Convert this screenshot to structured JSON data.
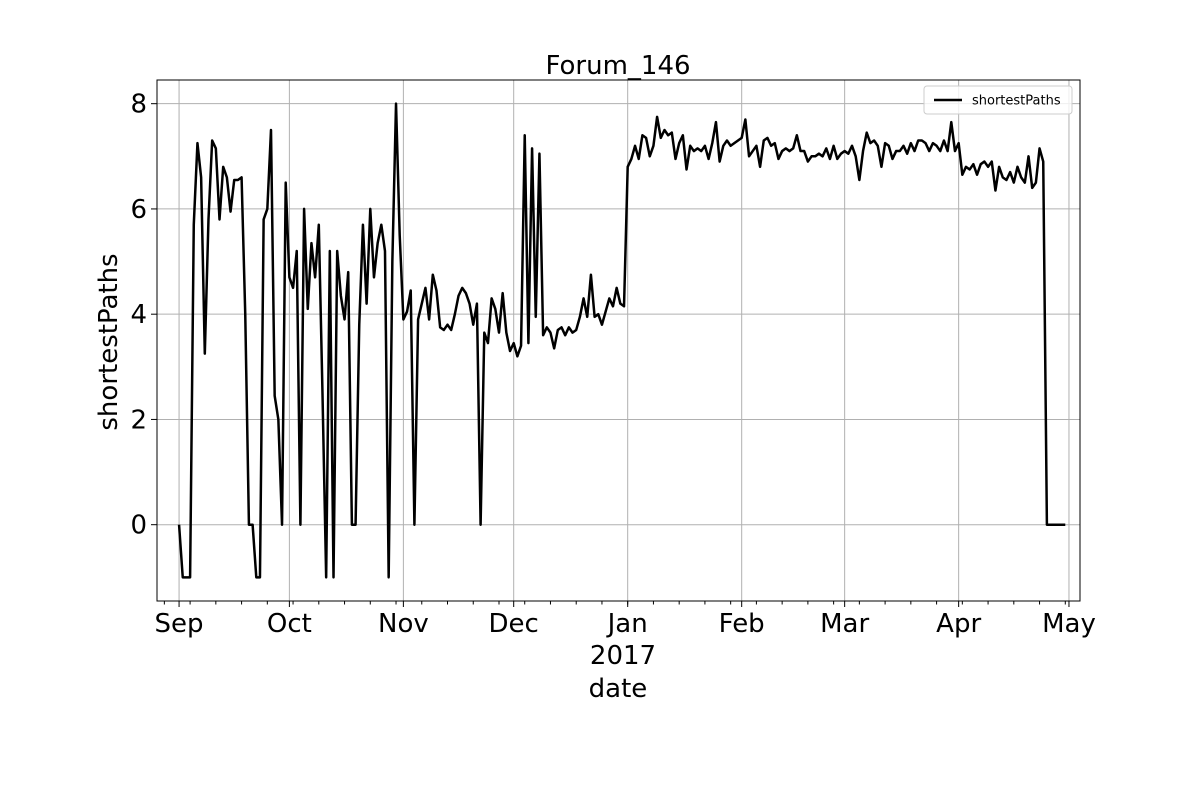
{
  "chart_data": {
    "type": "line",
    "title": "Forum_146",
    "xlabel": "date",
    "ylabel": "shortestPaths",
    "xlim": [
      "2016-08-26",
      "2017-05-04"
    ],
    "ylim": [
      -1.45,
      8.45
    ],
    "y_ticks": [
      0,
      2,
      4,
      6,
      8
    ],
    "x_ticks": [
      {
        "date": "2016-09-01",
        "label": "Sep"
      },
      {
        "date": "2016-10-01",
        "label": "Oct"
      },
      {
        "date": "2016-11-01",
        "label": "Nov"
      },
      {
        "date": "2016-12-01",
        "label": "Dec"
      },
      {
        "date": "2017-01-01",
        "label": "Jan"
      },
      {
        "date": "2017-02-01",
        "label": "Feb"
      },
      {
        "date": "2017-03-01",
        "label": "Mar"
      },
      {
        "date": "2017-04-01",
        "label": "Apr"
      },
      {
        "date": "2017-05-01",
        "label": "May"
      }
    ],
    "year_label": "2017",
    "grid": true,
    "legend": "top-right",
    "line_color": "#000000",
    "series": [
      {
        "name": "shortestPaths",
        "points": [
          [
            "2016-09-01",
            0
          ],
          [
            "2016-09-02",
            -1
          ],
          [
            "2016-09-03",
            -1
          ],
          [
            "2016-09-04",
            -1
          ],
          [
            "2016-09-05",
            5.7
          ],
          [
            "2016-09-06",
            7.25
          ],
          [
            "2016-09-07",
            6.6
          ],
          [
            "2016-09-08",
            3.25
          ],
          [
            "2016-09-09",
            5.8
          ],
          [
            "2016-09-10",
            7.3
          ],
          [
            "2016-09-11",
            7.15
          ],
          [
            "2016-09-12",
            5.8
          ],
          [
            "2016-09-13",
            6.8
          ],
          [
            "2016-09-14",
            6.6
          ],
          [
            "2016-09-15",
            5.95
          ],
          [
            "2016-09-16",
            6.55
          ],
          [
            "2016-09-17",
            6.55
          ],
          [
            "2016-09-18",
            6.6
          ],
          [
            "2016-09-19",
            4.0
          ],
          [
            "2016-09-20",
            0
          ],
          [
            "2016-09-21",
            0
          ],
          [
            "2016-09-22",
            -1
          ],
          [
            "2016-09-23",
            -1
          ],
          [
            "2016-09-24",
            5.8
          ],
          [
            "2016-09-25",
            6.0
          ],
          [
            "2016-09-26",
            7.5
          ],
          [
            "2016-09-27",
            2.45
          ],
          [
            "2016-09-28",
            2.0
          ],
          [
            "2016-09-29",
            0
          ],
          [
            "2016-09-30",
            6.5
          ],
          [
            "2016-10-01",
            4.7
          ],
          [
            "2016-10-02",
            4.5
          ],
          [
            "2016-10-03",
            5.2
          ],
          [
            "2016-10-04",
            0
          ],
          [
            "2016-10-05",
            6.0
          ],
          [
            "2016-10-06",
            4.1
          ],
          [
            "2016-10-07",
            5.35
          ],
          [
            "2016-10-08",
            4.7
          ],
          [
            "2016-10-09",
            5.7
          ],
          [
            "2016-10-10",
            2.5
          ],
          [
            "2016-10-11",
            -1
          ],
          [
            "2016-10-12",
            5.2
          ],
          [
            "2016-10-13",
            -1
          ],
          [
            "2016-10-14",
            5.2
          ],
          [
            "2016-10-15",
            4.35
          ],
          [
            "2016-10-16",
            3.9
          ],
          [
            "2016-10-17",
            4.8
          ],
          [
            "2016-10-18",
            0
          ],
          [
            "2016-10-19",
            0
          ],
          [
            "2016-10-20",
            3.8
          ],
          [
            "2016-10-21",
            5.7
          ],
          [
            "2016-10-22",
            4.2
          ],
          [
            "2016-10-23",
            6.0
          ],
          [
            "2016-10-24",
            4.7
          ],
          [
            "2016-10-25",
            5.35
          ],
          [
            "2016-10-26",
            5.7
          ],
          [
            "2016-10-27",
            5.2
          ],
          [
            "2016-10-28",
            -1
          ],
          [
            "2016-10-29",
            5.0
          ],
          [
            "2016-10-30",
            8.0
          ],
          [
            "2016-10-31",
            5.5
          ],
          [
            "2016-11-01",
            3.9
          ],
          [
            "2016-11-02",
            4.05
          ],
          [
            "2016-11-03",
            4.45
          ],
          [
            "2016-11-04",
            0
          ],
          [
            "2016-11-05",
            3.9
          ],
          [
            "2016-11-06",
            4.2
          ],
          [
            "2016-11-07",
            4.5
          ],
          [
            "2016-11-08",
            3.9
          ],
          [
            "2016-11-09",
            4.75
          ],
          [
            "2016-11-10",
            4.45
          ],
          [
            "2016-11-11",
            3.75
          ],
          [
            "2016-11-12",
            3.7
          ],
          [
            "2016-11-13",
            3.8
          ],
          [
            "2016-11-14",
            3.7
          ],
          [
            "2016-11-15",
            4.0
          ],
          [
            "2016-11-16",
            4.35
          ],
          [
            "2016-11-17",
            4.5
          ],
          [
            "2016-11-18",
            4.4
          ],
          [
            "2016-11-19",
            4.2
          ],
          [
            "2016-11-20",
            3.8
          ],
          [
            "2016-11-21",
            4.2
          ],
          [
            "2016-11-22",
            0
          ],
          [
            "2016-11-23",
            3.65
          ],
          [
            "2016-11-24",
            3.45
          ],
          [
            "2016-11-25",
            4.3
          ],
          [
            "2016-11-26",
            4.1
          ],
          [
            "2016-11-27",
            3.65
          ],
          [
            "2016-11-28",
            4.4
          ],
          [
            "2016-11-29",
            3.65
          ],
          [
            "2016-11-30",
            3.3
          ],
          [
            "2016-12-01",
            3.45
          ],
          [
            "2016-12-02",
            3.2
          ],
          [
            "2016-12-03",
            3.4
          ],
          [
            "2016-12-04",
            7.4
          ],
          [
            "2016-12-05",
            3.45
          ],
          [
            "2016-12-06",
            7.15
          ],
          [
            "2016-12-07",
            3.95
          ],
          [
            "2016-12-08",
            7.05
          ],
          [
            "2016-12-09",
            3.6
          ],
          [
            "2016-12-10",
            3.75
          ],
          [
            "2016-12-11",
            3.65
          ],
          [
            "2016-12-12",
            3.35
          ],
          [
            "2016-12-13",
            3.7
          ],
          [
            "2016-12-14",
            3.75
          ],
          [
            "2016-12-15",
            3.6
          ],
          [
            "2016-12-16",
            3.75
          ],
          [
            "2016-12-17",
            3.65
          ],
          [
            "2016-12-18",
            3.7
          ],
          [
            "2016-12-19",
            3.95
          ],
          [
            "2016-12-20",
            4.3
          ],
          [
            "2016-12-21",
            3.95
          ],
          [
            "2016-12-22",
            4.75
          ],
          [
            "2016-12-23",
            3.95
          ],
          [
            "2016-12-24",
            4.0
          ],
          [
            "2016-12-25",
            3.8
          ],
          [
            "2016-12-26",
            4.05
          ],
          [
            "2016-12-27",
            4.3
          ],
          [
            "2016-12-28",
            4.15
          ],
          [
            "2016-12-29",
            4.5
          ],
          [
            "2016-12-30",
            4.2
          ],
          [
            "2016-12-31",
            4.15
          ],
          [
            "2017-01-01",
            6.8
          ],
          [
            "2017-01-02",
            6.95
          ],
          [
            "2017-01-03",
            7.2
          ],
          [
            "2017-01-04",
            6.95
          ],
          [
            "2017-01-05",
            7.4
          ],
          [
            "2017-01-06",
            7.35
          ],
          [
            "2017-01-07",
            7.0
          ],
          [
            "2017-01-08",
            7.2
          ],
          [
            "2017-01-09",
            7.75
          ],
          [
            "2017-01-10",
            7.35
          ],
          [
            "2017-01-11",
            7.5
          ],
          [
            "2017-01-12",
            7.4
          ],
          [
            "2017-01-13",
            7.45
          ],
          [
            "2017-01-14",
            6.95
          ],
          [
            "2017-01-15",
            7.25
          ],
          [
            "2017-01-16",
            7.4
          ],
          [
            "2017-01-17",
            6.75
          ],
          [
            "2017-01-18",
            7.2
          ],
          [
            "2017-01-19",
            7.1
          ],
          [
            "2017-01-20",
            7.15
          ],
          [
            "2017-01-21",
            7.1
          ],
          [
            "2017-01-22",
            7.2
          ],
          [
            "2017-01-23",
            6.95
          ],
          [
            "2017-01-24",
            7.25
          ],
          [
            "2017-01-25",
            7.65
          ],
          [
            "2017-01-26",
            6.9
          ],
          [
            "2017-01-27",
            7.2
          ],
          [
            "2017-01-28",
            7.3
          ],
          [
            "2017-01-29",
            7.2
          ],
          [
            "2017-01-30",
            7.25
          ],
          [
            "2017-01-31",
            7.3
          ],
          [
            "2017-02-01",
            7.35
          ],
          [
            "2017-02-02",
            7.7
          ],
          [
            "2017-02-03",
            7.0
          ],
          [
            "2017-02-04",
            7.1
          ],
          [
            "2017-02-05",
            7.2
          ],
          [
            "2017-02-06",
            6.8
          ],
          [
            "2017-02-07",
            7.3
          ],
          [
            "2017-02-08",
            7.35
          ],
          [
            "2017-02-09",
            7.2
          ],
          [
            "2017-02-10",
            7.25
          ],
          [
            "2017-02-11",
            6.95
          ],
          [
            "2017-02-12",
            7.1
          ],
          [
            "2017-02-13",
            7.15
          ],
          [
            "2017-02-14",
            7.1
          ],
          [
            "2017-02-15",
            7.15
          ],
          [
            "2017-02-16",
            7.4
          ],
          [
            "2017-02-17",
            7.1
          ],
          [
            "2017-02-18",
            7.1
          ],
          [
            "2017-02-19",
            6.9
          ],
          [
            "2017-02-20",
            7.0
          ],
          [
            "2017-02-21",
            7.0
          ],
          [
            "2017-02-22",
            7.05
          ],
          [
            "2017-02-23",
            7.0
          ],
          [
            "2017-02-24",
            7.15
          ],
          [
            "2017-02-25",
            6.95
          ],
          [
            "2017-02-26",
            7.2
          ],
          [
            "2017-02-27",
            6.95
          ],
          [
            "2017-02-28",
            7.05
          ],
          [
            "2017-03-01",
            7.1
          ],
          [
            "2017-03-02",
            7.05
          ],
          [
            "2017-03-03",
            7.2
          ],
          [
            "2017-03-04",
            7.0
          ],
          [
            "2017-03-05",
            6.55
          ],
          [
            "2017-03-06",
            7.1
          ],
          [
            "2017-03-07",
            7.45
          ],
          [
            "2017-03-08",
            7.25
          ],
          [
            "2017-03-09",
            7.3
          ],
          [
            "2017-03-10",
            7.2
          ],
          [
            "2017-03-11",
            6.8
          ],
          [
            "2017-03-12",
            7.25
          ],
          [
            "2017-03-13",
            7.2
          ],
          [
            "2017-03-14",
            6.95
          ],
          [
            "2017-03-15",
            7.1
          ],
          [
            "2017-03-16",
            7.1
          ],
          [
            "2017-03-17",
            7.2
          ],
          [
            "2017-03-18",
            7.05
          ],
          [
            "2017-03-19",
            7.25
          ],
          [
            "2017-03-20",
            7.1
          ],
          [
            "2017-03-21",
            7.3
          ],
          [
            "2017-03-22",
            7.3
          ],
          [
            "2017-03-23",
            7.25
          ],
          [
            "2017-03-24",
            7.1
          ],
          [
            "2017-03-25",
            7.25
          ],
          [
            "2017-03-26",
            7.2
          ],
          [
            "2017-03-27",
            7.1
          ],
          [
            "2017-03-28",
            7.3
          ],
          [
            "2017-03-29",
            7.1
          ],
          [
            "2017-03-30",
            7.65
          ],
          [
            "2017-03-31",
            7.1
          ],
          [
            "2017-04-01",
            7.25
          ],
          [
            "2017-04-02",
            6.65
          ],
          [
            "2017-04-03",
            6.8
          ],
          [
            "2017-04-04",
            6.75
          ],
          [
            "2017-04-05",
            6.85
          ],
          [
            "2017-04-06",
            6.65
          ],
          [
            "2017-04-07",
            6.85
          ],
          [
            "2017-04-08",
            6.9
          ],
          [
            "2017-04-09",
            6.8
          ],
          [
            "2017-04-10",
            6.9
          ],
          [
            "2017-04-11",
            6.35
          ],
          [
            "2017-04-12",
            6.8
          ],
          [
            "2017-04-13",
            6.6
          ],
          [
            "2017-04-14",
            6.55
          ],
          [
            "2017-04-15",
            6.7
          ],
          [
            "2017-04-16",
            6.5
          ],
          [
            "2017-04-17",
            6.8
          ],
          [
            "2017-04-18",
            6.6
          ],
          [
            "2017-04-19",
            6.5
          ],
          [
            "2017-04-20",
            7.0
          ],
          [
            "2017-04-21",
            6.4
          ],
          [
            "2017-04-22",
            6.5
          ],
          [
            "2017-04-23",
            7.15
          ],
          [
            "2017-04-24",
            6.9
          ],
          [
            "2017-04-25",
            0
          ],
          [
            "2017-04-26",
            0
          ],
          [
            "2017-04-27",
            0
          ],
          [
            "2017-04-28",
            0
          ],
          [
            "2017-04-29",
            0
          ],
          [
            "2017-04-30",
            0
          ]
        ]
      }
    ]
  }
}
